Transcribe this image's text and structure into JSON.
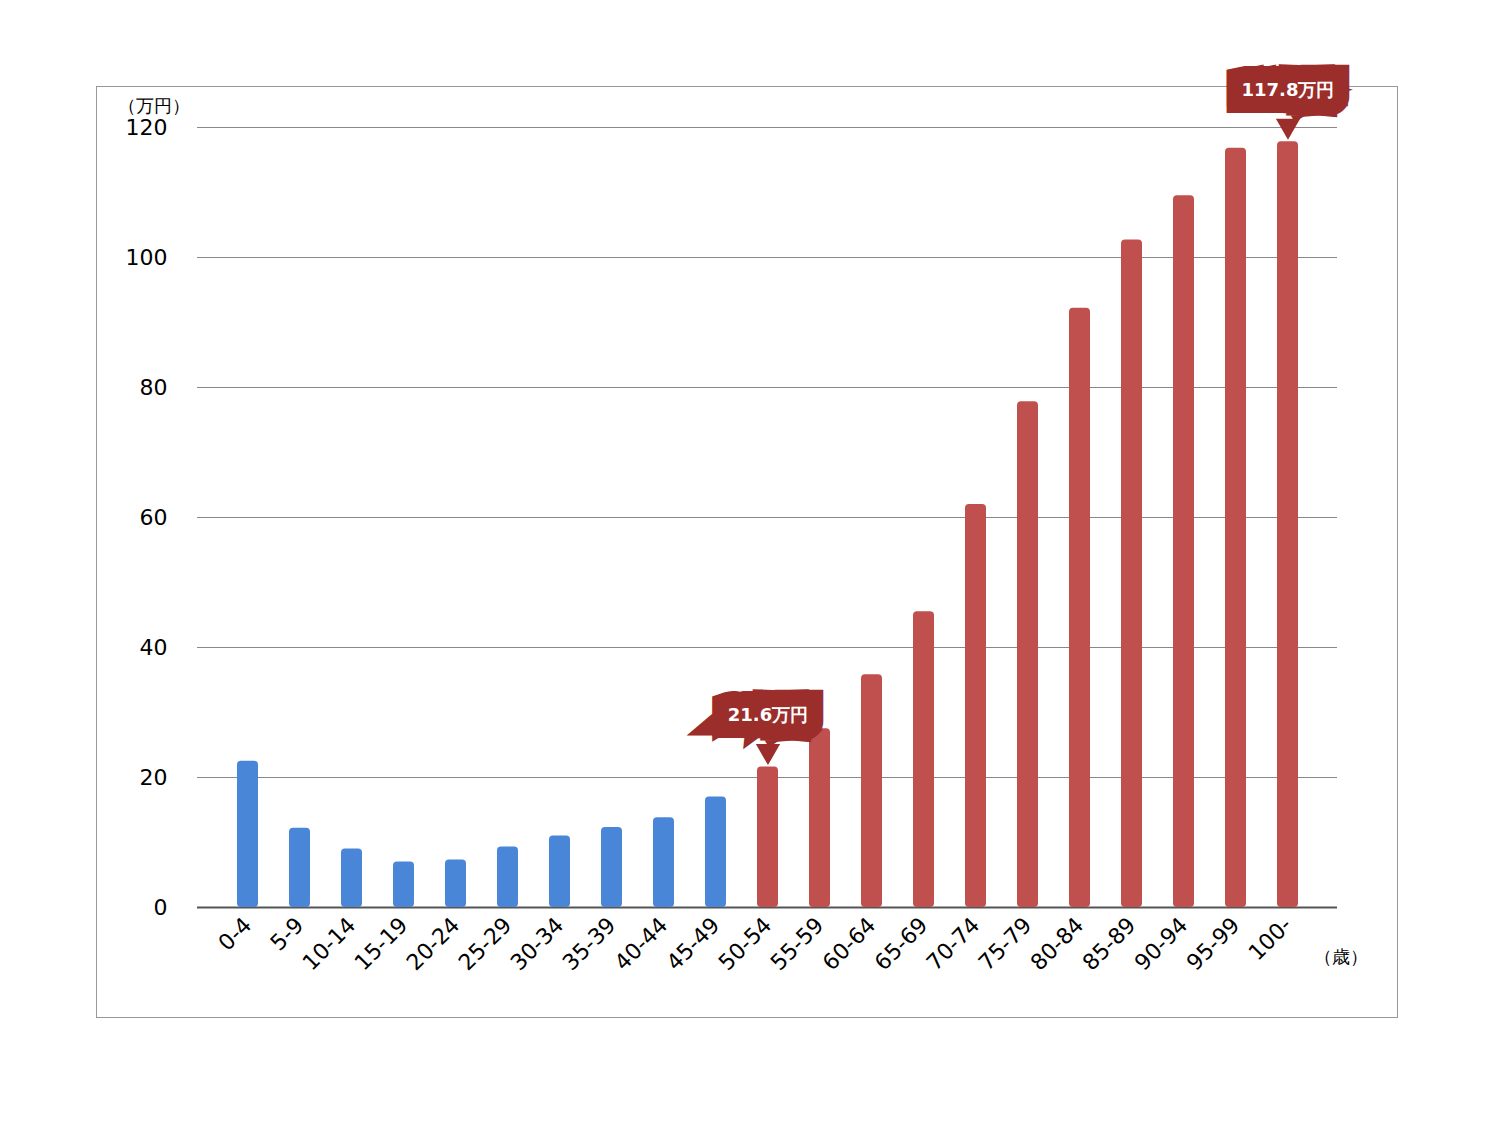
{
  "chart_data": {
    "type": "bar",
    "y_label": "（万円）",
    "x_label": "（歳）",
    "categories": [
      "0-4",
      "5-9",
      "10-14",
      "15-19",
      "20-24",
      "25-29",
      "30-34",
      "35-39",
      "40-44",
      "45-49",
      "50-54",
      "55-59",
      "60-64",
      "65-69",
      "70-74",
      "75-79",
      "80-84",
      "85-89",
      "90-94",
      "95-99",
      "100-"
    ],
    "values": [
      22.5,
      12.2,
      9.0,
      7.0,
      7.3,
      9.3,
      11.0,
      12.3,
      13.8,
      17.0,
      21.6,
      27.5,
      35.8,
      45.5,
      62.0,
      77.8,
      92.2,
      102.7,
      109.5,
      116.8,
      117.8
    ],
    "colors": [
      "#4a86d8",
      "#4a86d8",
      "#4a86d8",
      "#4a86d8",
      "#4a86d8",
      "#4a86d8",
      "#4a86d8",
      "#4a86d8",
      "#4a86d8",
      "#4a86d8",
      "#c0504d",
      "#c0504d",
      "#c0504d",
      "#c0504d",
      "#c0504d",
      "#c0504d",
      "#c0504d",
      "#c0504d",
      "#c0504d",
      "#c0504d",
      "#c0504d"
    ],
    "annotations": [
      {
        "category": "50-54",
        "label": "21.6万円"
      },
      {
        "category": "100-",
        "label": "117.8万円"
      }
    ],
    "ylim": [
      0,
      120
    ],
    "yticks": [
      0,
      20,
      40,
      60,
      80,
      100,
      120
    ],
    "grid": true
  }
}
